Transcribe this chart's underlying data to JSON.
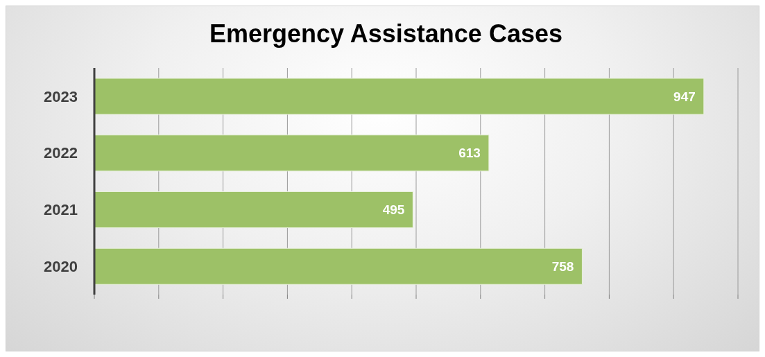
{
  "chart_data": {
    "type": "bar",
    "orientation": "horizontal",
    "title": "Emergency Assistance Cases",
    "categories": [
      "2023",
      "2022",
      "2021",
      "2020"
    ],
    "values": [
      947,
      613,
      495,
      758
    ],
    "color": "#9dc167",
    "xlim": [
      0,
      1000
    ],
    "tick_labels": "y",
    "grid": "x",
    "data_labels": true
  }
}
